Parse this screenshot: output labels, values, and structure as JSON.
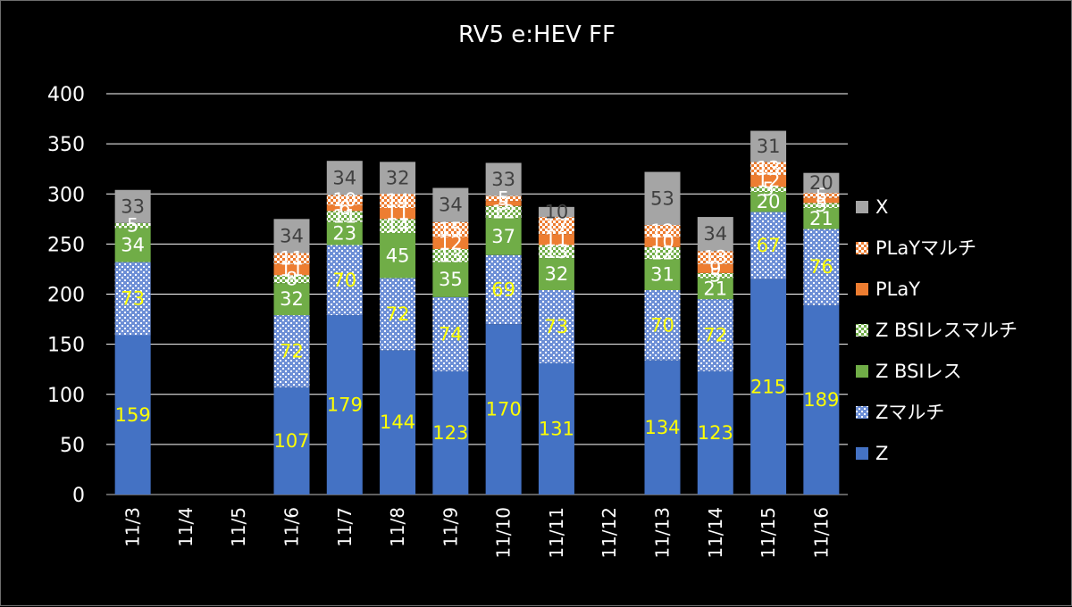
{
  "chart_data": {
    "type": "bar",
    "stacked": true,
    "title": "RV5 e:HEV FF",
    "xlabel": "",
    "ylabel": "",
    "ylim": [
      0,
      400
    ],
    "yticks": [
      0,
      50,
      100,
      150,
      200,
      250,
      300,
      350,
      400
    ],
    "grid": true,
    "legend_position": "right",
    "categories": [
      "11/3",
      "11/4",
      "11/5",
      "11/6",
      "11/7",
      "11/8",
      "11/9",
      "11/10",
      "11/11",
      "11/12",
      "11/13",
      "11/14",
      "11/15",
      "11/16"
    ],
    "series": [
      {
        "name": "Z",
        "color": "#4472c4",
        "pattern": "solid",
        "label_color": "#ffff00",
        "values": [
          159,
          null,
          null,
          107,
          179,
          144,
          123,
          170,
          131,
          null,
          134,
          123,
          215,
          189
        ]
      },
      {
        "name": "Zマルチ",
        "color": "#4472c4",
        "pattern": "dots",
        "label_color": "#ffff00",
        "values": [
          73,
          null,
          null,
          72,
          70,
          72,
          74,
          69,
          73,
          null,
          70,
          72,
          67,
          76
        ]
      },
      {
        "name": "Z BSIレス",
        "color": "#70ad47",
        "pattern": "solid",
        "label_color": "#ffffff",
        "values": [
          34,
          null,
          null,
          32,
          23,
          45,
          35,
          37,
          32,
          null,
          31,
          21,
          20,
          21
        ]
      },
      {
        "name": "Z BSIレスマルチ",
        "color": "#70ad47",
        "pattern": "checker",
        "label_color": "#ffffff",
        "values": [
          5,
          null,
          null,
          8,
          11,
          14,
          13,
          12,
          13,
          null,
          12,
          5,
          5,
          5
        ]
      },
      {
        "name": "PLaY",
        "color": "#ed7d31",
        "pattern": "solid",
        "label_color": "#ffffff",
        "values": [
          null,
          null,
          null,
          11,
          6,
          11,
          12,
          5,
          11,
          null,
          10,
          9,
          12,
          5
        ]
      },
      {
        "name": "PLaYマルチ",
        "color": "#ed7d31",
        "pattern": "checker",
        "label_color": "#ffffff",
        "values": [
          null,
          null,
          null,
          11,
          10,
          14,
          15,
          5,
          17,
          null,
          12,
          13,
          13,
          5
        ]
      },
      {
        "name": "X",
        "color": "#a5a5a5",
        "pattern": "solid",
        "label_color": "#404040",
        "values": [
          33,
          null,
          null,
          34,
          34,
          32,
          34,
          33,
          10,
          null,
          53,
          34,
          31,
          20
        ]
      }
    ]
  }
}
